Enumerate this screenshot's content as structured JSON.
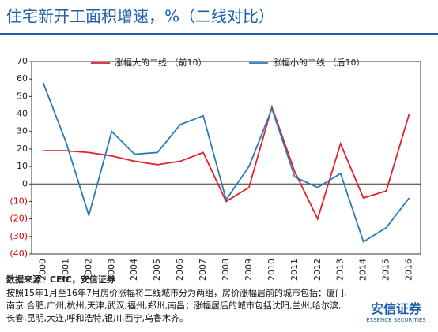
{
  "chart_data": {
    "type": "line",
    "title": "住宅新开工面积增速，%（二线对比）",
    "categories": [
      "2000",
      "2001",
      "2002",
      "2003",
      "2004",
      "2005",
      "2006",
      "2007",
      "2008",
      "2009",
      "2010",
      "2011",
      "2012",
      "2013",
      "2014",
      "2015",
      "2016"
    ],
    "series": [
      {
        "name": "涨幅大的二线 （前10）",
        "color": "#e0202c",
        "values": [
          19,
          19,
          18,
          16,
          13,
          11,
          13,
          18,
          -10,
          -2,
          44,
          7,
          -20,
          23,
          -8,
          -4,
          40
        ]
      },
      {
        "name": "涨幅小的二线 （后10）",
        "color": "#2a7ab8",
        "values": [
          58,
          24,
          -18,
          30,
          17,
          18,
          34,
          39,
          -9,
          10,
          43,
          4,
          -2,
          6,
          -33,
          -25,
          -8
        ]
      }
    ],
    "ylim": [
      -40,
      70
    ],
    "yticks": [
      70,
      60,
      50,
      40,
      30,
      20,
      10,
      0,
      {
        "value": -10,
        "label": "(10)"
      },
      {
        "value": -20,
        "label": "(20)"
      },
      {
        "value": -30,
        "label": "(30)"
      },
      {
        "value": -40,
        "label": "(40)"
      }
    ],
    "source": "数据来源：CEIC，安信证券",
    "note": "按照15年1月至16年7月房价涨幅将二线城市分为两组，房价涨幅居前的城市包括：厦门,南京,合肥,广州,杭州,天津,武汉,福州,郑州,南昌；涨幅居后的城市包括沈阳,兰州,哈尔滨,长春,昆明,大连,呼和浩特,银川,西宁,乌鲁木齐。"
  },
  "logo": {
    "name": "安信证券",
    "subtitle": "ESSENCE SECURITIES"
  }
}
